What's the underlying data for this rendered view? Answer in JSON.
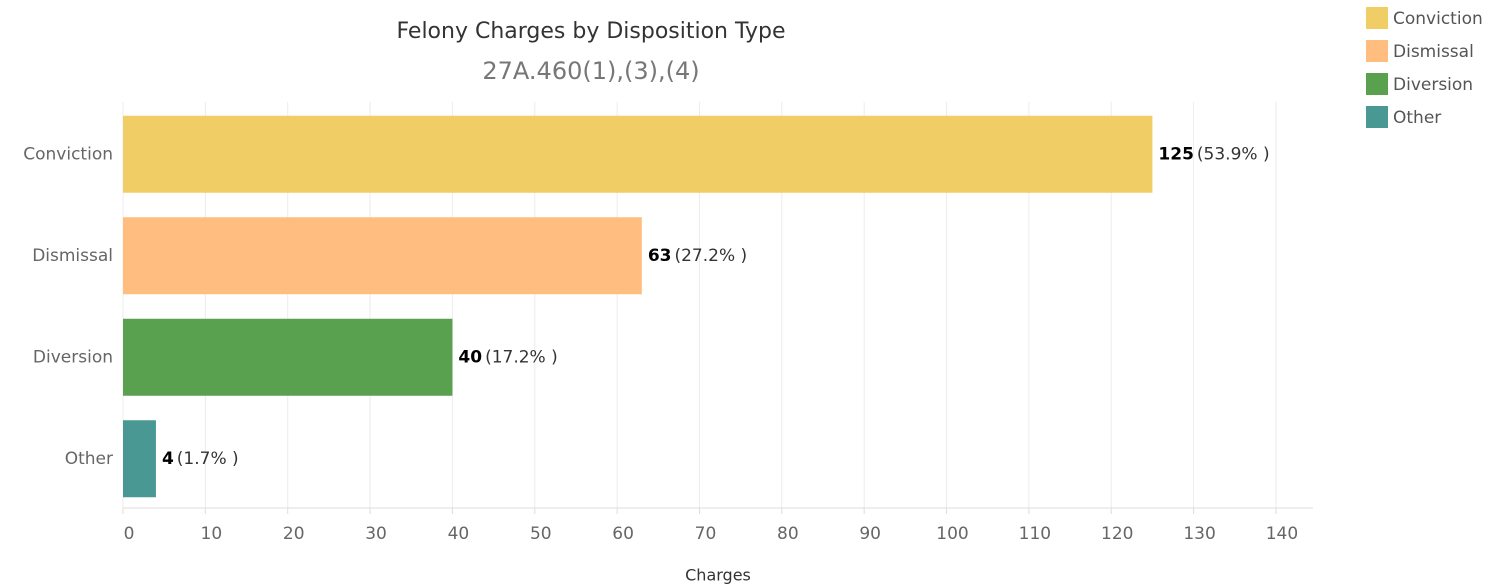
{
  "chart_data": {
    "type": "barh",
    "title": "Felony Charges by Disposition Type",
    "subtitle": "27A.460(1),(3),(4)",
    "xlabel": "Charges",
    "categories": [
      "Conviction",
      "Dismissal",
      "Diversion",
      "Other"
    ],
    "values": [
      125,
      63,
      40,
      4
    ],
    "share_labels": [
      "(53.9% )",
      "(27.2% )",
      "(17.2% )",
      "(1.7% )"
    ],
    "colors": [
      "#f1cd66",
      "#ffbe80",
      "#59a14f",
      "#4a9893"
    ],
    "xlim": [
      0,
      144.5
    ],
    "xticks": [
      0,
      10,
      20,
      30,
      40,
      50,
      60,
      70,
      80,
      90,
      100,
      110,
      120,
      130,
      140
    ],
    "grid": true,
    "legend": "top-right"
  }
}
